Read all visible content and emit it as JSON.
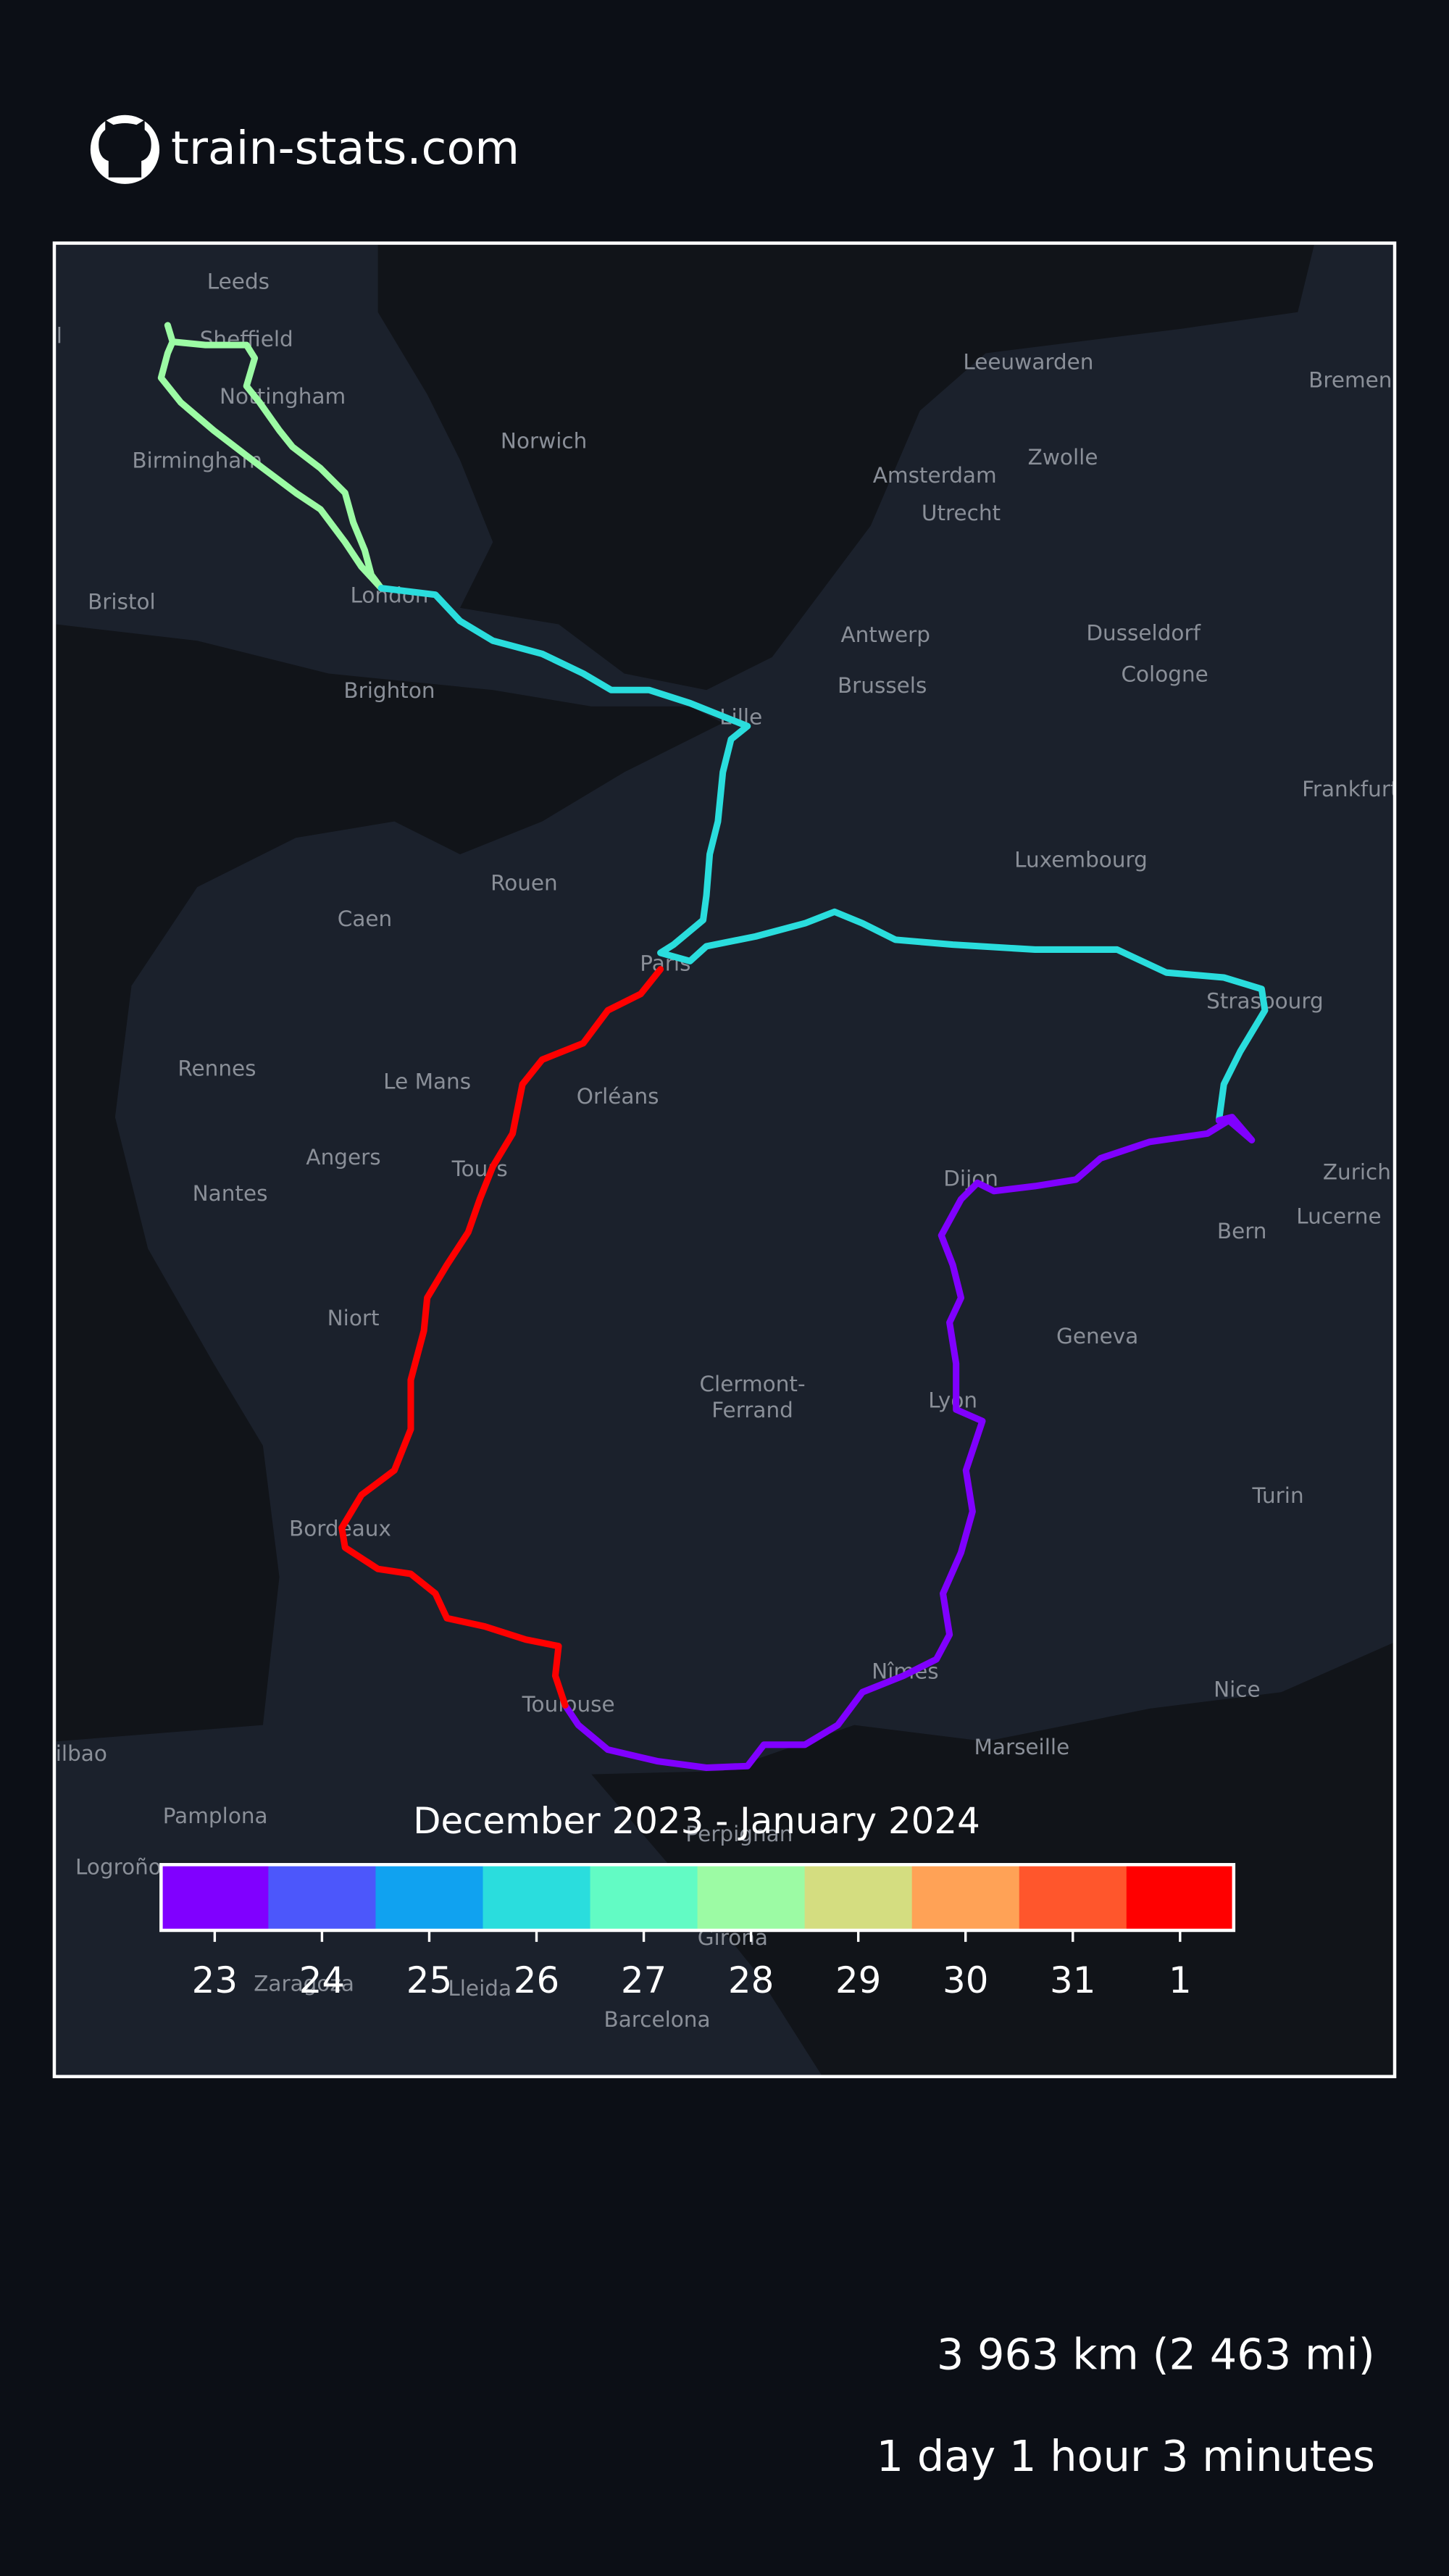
{
  "header": {
    "title": "train-stats.com"
  },
  "map": {
    "cities": [
      "Leeds",
      "Liverpool",
      "Sheffield",
      "Nottingham",
      "Birmingham",
      "Norwich",
      "Bristol",
      "London",
      "Brighton",
      "Leeuwarden",
      "Bremen",
      "Amsterdam",
      "Zwolle",
      "Utrecht",
      "Antwerp",
      "Dusseldorf",
      "Brussels",
      "Cologne",
      "Lille",
      "Frankfurt",
      "Luxembourg",
      "Rouen",
      "Caen",
      "Paris",
      "Strasbourg",
      "Rennes",
      "Le Mans",
      "Orléans",
      "Angers",
      "Nantes",
      "Tours",
      "Dijon",
      "Zurich",
      "Lucerne",
      "Bern",
      "Niort",
      "Geneva",
      "Clermont-",
      "Ferrand",
      "Lyon",
      "Turin",
      "Bordeaux",
      "Nice",
      "Nîmes",
      "Toulouse",
      "Marseille",
      "Perpignan",
      "Pamplona",
      "Logroño",
      "Bilbao",
      "Zaragoza",
      "Lleida",
      "Girona",
      "Barcelona"
    ]
  },
  "colorbar": {
    "title": "December 2023 - January 2024",
    "labels": [
      "23",
      "24",
      "25",
      "26",
      "27",
      "28",
      "29",
      "30",
      "31",
      "1"
    ],
    "colors": [
      "#8000ff",
      "#4c57fb",
      "#10a2f0",
      "#2adddd",
      "#62fbc4",
      "#9cfba4",
      "#d4dd80",
      "#ffa256",
      "#ff562c",
      "#ff0000"
    ]
  },
  "stats": {
    "distance": "3 963 km (2 463 mi)",
    "duration": "1 day 1 hour 3 minutes"
  }
}
